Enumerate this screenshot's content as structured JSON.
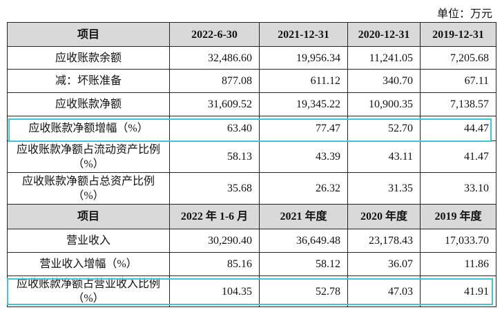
{
  "unit": "单位：万元",
  "sections": [
    {
      "header": [
        "项目",
        "2022-6-30",
        "2021-12-31",
        "2020-12-31",
        "2019-12-31"
      ],
      "rows": [
        [
          "应收账款余额",
          "32,486.60",
          "19,956.34",
          "11,241.05",
          "7,205.68"
        ],
        [
          "减：坏账准备",
          "877.08",
          "611.12",
          "340.70",
          "67.11"
        ],
        [
          "应收账款净额",
          "31,609.52",
          "19,345.22",
          "10,900.35",
          "7,138.57"
        ],
        [
          "应收账款净额增幅（%）",
          "63.40",
          "77.47",
          "52.70",
          "44.47"
        ],
        [
          "应收账款净额占流动资产比例（%）",
          "58.13",
          "43.39",
          "43.11",
          "41.47"
        ],
        [
          "应收账款净额占总资产比例（%）",
          "35.68",
          "26.32",
          "31.35",
          "33.10"
        ]
      ]
    },
    {
      "header": [
        "项目",
        "2022 年 1-6 月",
        "2021 年度",
        "2020 年度",
        "2019 年度"
      ],
      "rows": [
        [
          "营业收入",
          "30,290.40",
          "36,649.48",
          "23,178.43",
          "17,033.70"
        ],
        [
          "营业收入增幅（%）",
          "85.16",
          "58.12",
          "36.07",
          "11.86"
        ],
        [
          "应收账款净额占营业收入比例（%）",
          "104.35",
          "52.78",
          "47.03",
          "41.91"
        ]
      ]
    }
  ]
}
